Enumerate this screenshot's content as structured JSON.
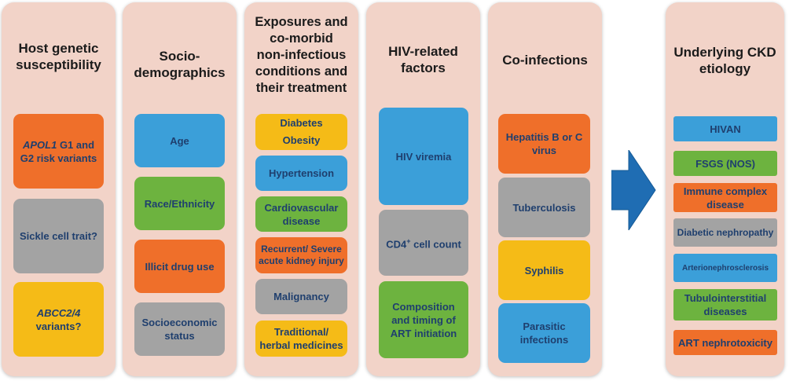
{
  "columns": [
    {
      "title_lines": [
        "Host genetic",
        "susceptibility"
      ],
      "items": [
        {
          "italic": "APOL1",
          "rest": " G1 and G2 risk variants",
          "color": "orange"
        },
        {
          "text": "Sickle cell trait?",
          "color": "gray"
        },
        {
          "italic": "ABCC2/4",
          "rest": " variants?",
          "color": "yellow"
        }
      ]
    },
    {
      "title_lines": [
        "Socio-",
        "demographics"
      ],
      "items": [
        {
          "text": "Age",
          "color": "blue"
        },
        {
          "text": "Race/Ethnicity",
          "color": "green"
        },
        {
          "text": "Illicit drug use",
          "color": "orange"
        },
        {
          "text": "Socioeconomic status",
          "color": "gray"
        }
      ]
    },
    {
      "title_lines": [
        "Exposures and",
        "co-morbid",
        "non-infectious",
        "conditions and",
        "their treatment"
      ],
      "items": [
        {
          "lines": [
            "Diabetes",
            "Obesity"
          ],
          "color": "yellow"
        },
        {
          "text": "Hypertension",
          "color": "blue"
        },
        {
          "text": "Cardiovascular disease",
          "color": "green"
        },
        {
          "text": "Recurrent/ Severe acute kidney injury",
          "color": "orange"
        },
        {
          "text": "Malignancy",
          "color": "gray"
        },
        {
          "text": "Traditional/ herbal medicines",
          "color": "yellow"
        }
      ]
    },
    {
      "title_lines": [
        "HIV-related",
        "factors"
      ],
      "items": [
        {
          "text": "HIV viremia",
          "color": "blue"
        },
        {
          "pre": "CD4",
          "sup": "+",
          "post": " cell count",
          "color": "gray"
        },
        {
          "text": "Composition and timing of ART initiation",
          "color": "green"
        }
      ]
    },
    {
      "title_lines": [
        "Co-infections"
      ],
      "items": [
        {
          "text": "Hepatitis B or C virus",
          "color": "orange"
        },
        {
          "text": "Tuberculosis",
          "color": "gray"
        },
        {
          "text": "Syphilis",
          "color": "yellow"
        },
        {
          "text": "Parasitic infections",
          "color": "blue"
        }
      ]
    },
    {
      "title_lines": [
        "Underlying CKD",
        "etiology"
      ],
      "items": [
        {
          "text": "HIVAN",
          "color": "blue"
        },
        {
          "text": "FSGS (NOS)",
          "color": "green"
        },
        {
          "text": "Immune complex disease",
          "color": "orange"
        },
        {
          "text": "Diabetic nephropathy",
          "color": "gray"
        },
        {
          "text": "Arterionephrosclerosis",
          "color": "blue"
        },
        {
          "text": "Tubulointerstitial diseases",
          "color": "green"
        },
        {
          "text": "ART nephrotoxicity",
          "color": "orange"
        }
      ]
    }
  ],
  "colors": {
    "panel": "#f2d3c8",
    "orange": "#ef6f2a",
    "gray": "#a3a3a3",
    "yellow": "#f5bb17",
    "blue": "#3b9fd9",
    "green": "#6db33f",
    "text": "#1f3f6e",
    "arrow": "#1f6db3"
  }
}
